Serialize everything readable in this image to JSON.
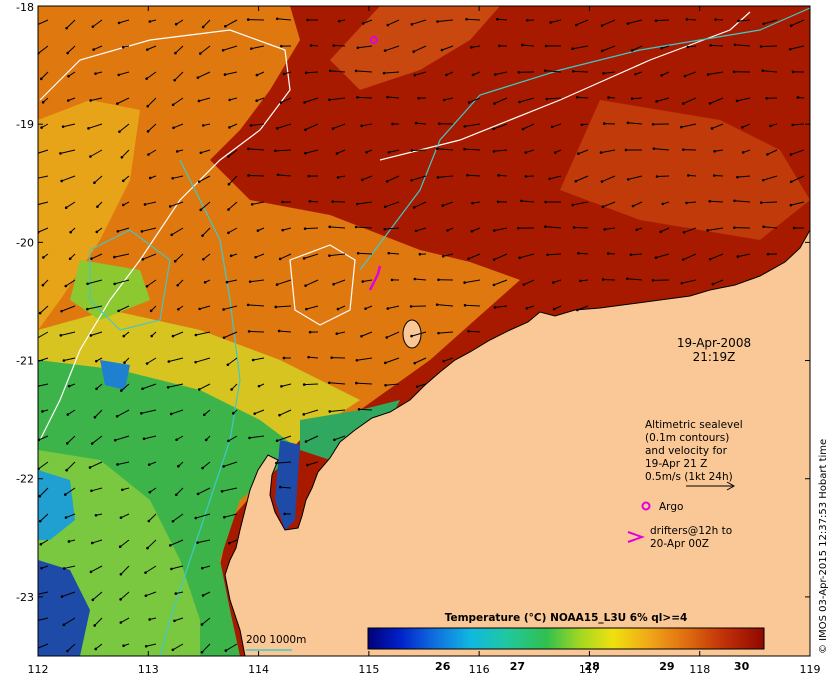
{
  "map": {
    "lon_range": [
      112,
      119
    ],
    "lat_range": [
      -23.5,
      -18
    ],
    "lon_ticks": [
      "112",
      "113",
      "114",
      "115",
      "116",
      "117",
      "118",
      "119"
    ],
    "lat_ticks": [
      "-18",
      "-19",
      "-20",
      "-21",
      "-22",
      "-23"
    ]
  },
  "date_label": {
    "date": "19-Apr-2008",
    "time": "21:19Z"
  },
  "legend": {
    "sealevel_lines": [
      "Altimetric sealevel",
      "(0.1m contours)",
      "and velocity for",
      "19-Apr 21 Z",
      "0.5m/s (1kt 24h)"
    ],
    "argo_label": "Argo",
    "drifters_lines": [
      "drifters@12h to",
      "20-Apr 00Z"
    ],
    "contour_label": "200  1000m"
  },
  "colorbar": {
    "title": "Temperature (°C) NOAA15_L3U 6% ql>=4",
    "range": [
      25,
      30.3
    ],
    "ticks": [
      "26",
      "27",
      "28",
      "29",
      "30"
    ]
  },
  "credit": "© IMOS 03-Apr-2015 12:37:53 Hobart time",
  "colors": {
    "land": "#f9c896",
    "sst_warm": "#a81a00",
    "sst_orange": "#e07810",
    "sst_yellow": "#e8c41c",
    "sst_green": "#3cb44a",
    "sst_blue": "#1e4aa8",
    "argo": "#e000e0",
    "drifter": "#e000e0",
    "contour_200": "#40c8c8",
    "contour_1000": "#ffffff"
  }
}
